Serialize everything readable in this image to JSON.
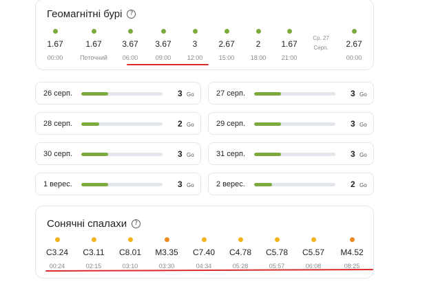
{
  "geo": {
    "title": "Геомагнітні бурі",
    "help_icon": "question-circle-icon",
    "columns": [
      {
        "value": "1.67",
        "time": "00:00",
        "dot": "#7cab3c"
      },
      {
        "value": "1.67",
        "time": "Поточний",
        "dot": "#7cab3c"
      },
      {
        "value": "3.67",
        "time": "06:00",
        "dot": "#7cab3c"
      },
      {
        "value": "3.67",
        "time": "09:00",
        "dot": "#7cab3c"
      },
      {
        "value": "3",
        "time": "12:00",
        "dot": "#7cab3c"
      },
      {
        "value": "2.67",
        "time": "15:00",
        "dot": "#7cab3c"
      },
      {
        "value": "2",
        "time": "18:00",
        "dot": "#7cab3c"
      },
      {
        "value": "1.67",
        "time": "21:00",
        "dot": "#7cab3c"
      },
      {
        "value": "",
        "sublabel_1": "Ср, 27",
        "sublabel_2": "Серп.",
        "time": "",
        "dot": ""
      },
      {
        "value": "2.67",
        "time": "00:00",
        "dot": "#7cab3c"
      }
    ]
  },
  "days": [
    {
      "label": "26 серп.",
      "value": "3",
      "unit": "Go",
      "fill": 0.33
    },
    {
      "label": "27 серп.",
      "value": "3",
      "unit": "Go",
      "fill": 0.33
    },
    {
      "label": "28 серп.",
      "value": "2",
      "unit": "Go",
      "fill": 0.22
    },
    {
      "label": "29 серп.",
      "value": "3",
      "unit": "Go",
      "fill": 0.33
    },
    {
      "label": "30 серп.",
      "value": "3",
      "unit": "Go",
      "fill": 0.33
    },
    {
      "label": "31 серп.",
      "value": "3",
      "unit": "Go",
      "fill": 0.33
    },
    {
      "label": "1 верес.",
      "value": "3",
      "unit": "Go",
      "fill": 0.33
    },
    {
      "label": "2 верес.",
      "value": "2",
      "unit": "Go",
      "fill": 0.22
    }
  ],
  "flares": {
    "title": "Сонячні спалахи",
    "help_icon": "question-circle-icon",
    "columns": [
      {
        "value": "C3.24",
        "time": "00:24",
        "dot": "#f2b31c"
      },
      {
        "value": "C3.11",
        "time": "02:15",
        "dot": "#f2b31c"
      },
      {
        "value": "C8.01",
        "time": "03:10",
        "dot": "#f2b31c"
      },
      {
        "value": "M3.35",
        "time": "03:30",
        "dot": "#ee8a22"
      },
      {
        "value": "C7.40",
        "time": "04:34",
        "dot": "#f2b31c"
      },
      {
        "value": "C4.78",
        "time": "05:28",
        "dot": "#f2b31c"
      },
      {
        "value": "C5.78",
        "time": "05:57",
        "dot": "#f2b31c"
      },
      {
        "value": "C5.57",
        "time": "06:08",
        "dot": "#f2b31c"
      },
      {
        "value": "M4.52",
        "time": "08:25",
        "dot": "#ee8a22"
      }
    ]
  },
  "colors": {
    "bar_fill": "#7cab3c",
    "annotation": "#d92b2b"
  }
}
